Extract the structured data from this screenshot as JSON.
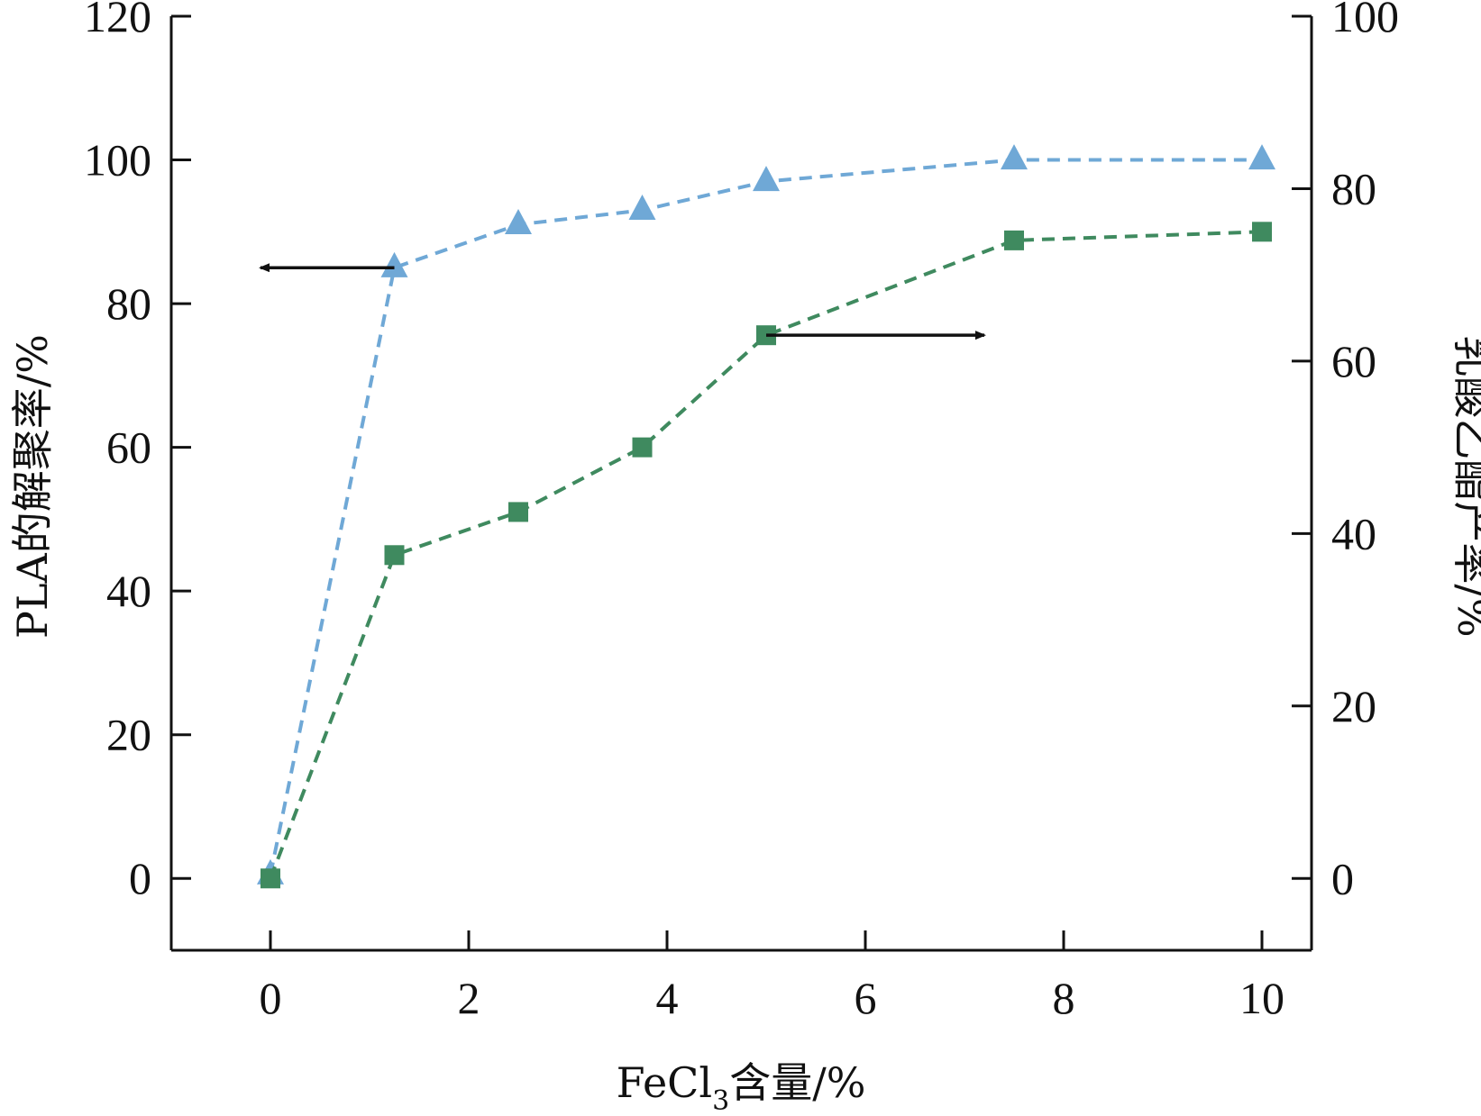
{
  "chart_data": {
    "type": "line",
    "x": [
      0,
      1.25,
      2.5,
      3.75,
      5,
      7.5,
      10
    ],
    "xlabel_main": "FeCl",
    "xlabel_sub": "3",
    "xlabel_rest": "含量/%",
    "ylabel_left": "PLA的解聚率/%",
    "ylabel_right": "乳酸乙酯产率/%",
    "xlim": [
      -1,
      10.5
    ],
    "ylim_left": [
      -10,
      120
    ],
    "ylim_right": [
      -8.33,
      100
    ],
    "xticks": [
      0,
      2,
      4,
      6,
      8,
      10
    ],
    "yticks_left": [
      0,
      20,
      40,
      60,
      80,
      100,
      120
    ],
    "yticks_right": [
      0,
      20,
      40,
      60,
      80,
      100
    ],
    "series": [
      {
        "axis": "left",
        "marker": "triangle",
        "color": "#6fa8d6",
        "line_style": "dashed",
        "values": [
          0.5,
          85,
          91,
          93,
          97,
          100,
          100
        ]
      },
      {
        "axis": "right",
        "marker": "square",
        "color": "#3f8a5f",
        "line_style": "dashed",
        "values": [
          0,
          37.5,
          42.5,
          50,
          63,
          74,
          75
        ]
      }
    ],
    "annotations": [
      {
        "type": "arrow",
        "direction": "left",
        "points_to_axis": "left",
        "from": [
          1.25,
          85
        ],
        "to": [
          -0.1,
          85
        ],
        "coord_axis": "left"
      },
      {
        "type": "arrow",
        "direction": "right",
        "points_to_axis": "right",
        "from": [
          5,
          63
        ],
        "to": [
          7.2,
          63
        ],
        "coord_axis": "right"
      }
    ],
    "grid": false,
    "legend": "none"
  }
}
